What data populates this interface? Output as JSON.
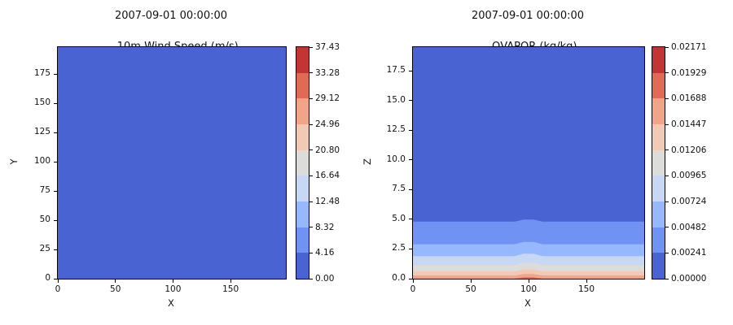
{
  "figure": {
    "background": "#ffffff",
    "colormap": "coolwarm (9 discrete bins)",
    "colormap_bins": [
      "#4a63d3",
      "#7092f3",
      "#97b8fe",
      "#c8d8f4",
      "#dcdcda",
      "#f2c9b4",
      "#f2a488",
      "#e06a53",
      "#c33434"
    ]
  },
  "chart_data": [
    {
      "id": "wind-speed",
      "type": "heatmap",
      "title": "2007-09-01 00:00:00",
      "subtitle": "10m Wind Speed (m/s)",
      "xlabel": "X",
      "ylabel": "Y",
      "xlim": [
        0,
        198
      ],
      "ylim": [
        0,
        198
      ],
      "xticks": [
        0,
        50,
        100,
        150
      ],
      "xtick_labels": [
        "0",
        "50",
        "100",
        "150"
      ],
      "yticks": [
        0,
        25,
        50,
        75,
        100,
        125,
        150,
        175
      ],
      "ytick_labels": [
        "0",
        "25",
        "50",
        "75",
        "100",
        "125",
        "150",
        "175"
      ],
      "field": "uniform",
      "field_bin": 0,
      "field_value_range": [
        0.0,
        4.16
      ],
      "colorbar": {
        "vmin": 0.0,
        "vmax": 37.43,
        "tick_labels": [
          "0.00",
          "4.16",
          "8.32",
          "12.48",
          "16.64",
          "20.80",
          "24.96",
          "29.12",
          "33.28",
          "37.43"
        ]
      }
    },
    {
      "id": "qvapor",
      "type": "contourf",
      "title": "2007-09-01 00:00:00",
      "subtitle": "QVAPOR (kg/kg)",
      "xlabel": "X",
      "ylabel": "Z",
      "xlim": [
        0,
        200
      ],
      "ylim": [
        0,
        19.5
      ],
      "xticks": [
        0,
        50,
        100,
        150
      ],
      "xtick_labels": [
        "0",
        "50",
        "100",
        "150"
      ],
      "yticks": [
        0.0,
        2.5,
        5.0,
        7.5,
        10.0,
        12.5,
        15.0,
        17.5
      ],
      "ytick_labels": [
        "0.0",
        "2.5",
        "5.0",
        "7.5",
        "10.0",
        "12.5",
        "15.0",
        "17.5"
      ],
      "background_bin": 0,
      "bump_center_x": 100,
      "bands": [
        {
          "bin": 1,
          "z_top": 4.8,
          "bump": 0.18,
          "bump_only": false
        },
        {
          "bin": 2,
          "z_top": 2.9,
          "bump": 0.2,
          "bump_only": false
        },
        {
          "bin": 3,
          "z_top": 1.9,
          "bump": 0.2,
          "bump_only": false
        },
        {
          "bin": 4,
          "z_top": 1.15,
          "bump": 0.2,
          "bump_only": false
        },
        {
          "bin": 5,
          "z_top": 0.62,
          "bump": 0.15,
          "bump_only": false
        },
        {
          "bin": 6,
          "z_top": 0.27,
          "bump": 0.12,
          "bump_only": false
        },
        {
          "bin": 7,
          "z_top": 0.0,
          "bump": 0.12,
          "bump_only": true
        }
      ],
      "colorbar": {
        "vmin": 0.0,
        "vmax": 0.02171,
        "tick_labels": [
          "0.00000",
          "0.00241",
          "0.00482",
          "0.00724",
          "0.00965",
          "0.01206",
          "0.01447",
          "0.01688",
          "0.01929",
          "0.02171"
        ]
      }
    }
  ]
}
